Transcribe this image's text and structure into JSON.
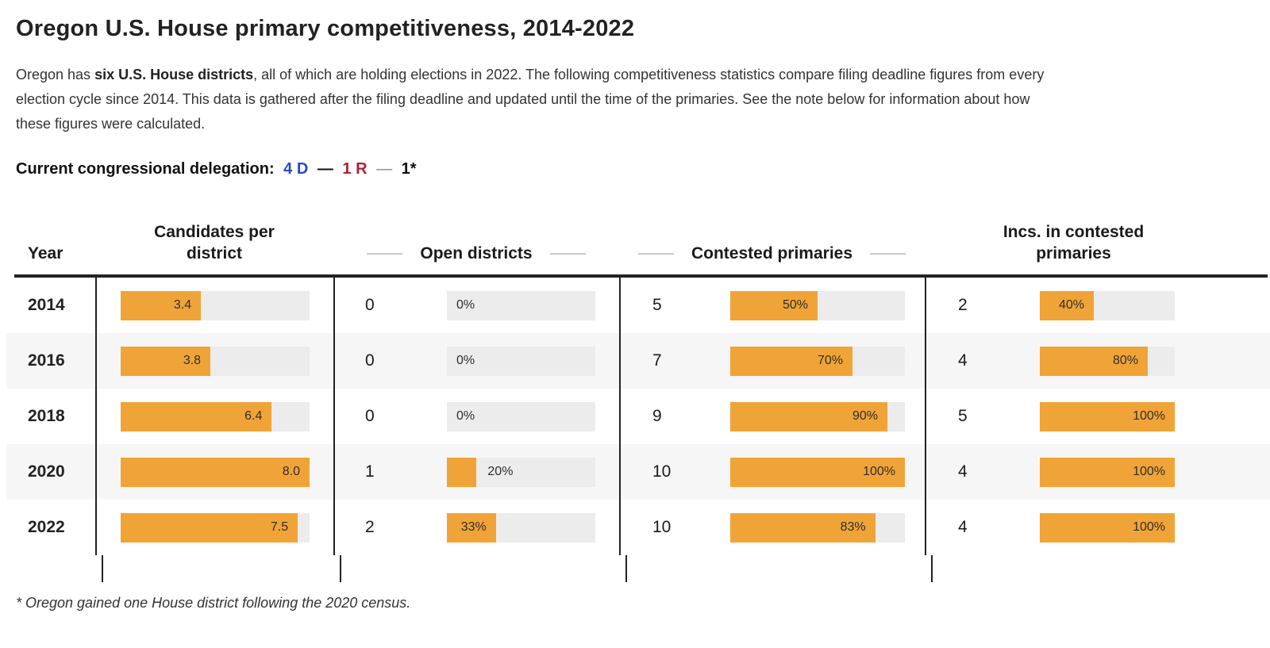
{
  "header": {
    "title": "Oregon U.S. House primary competitiveness, 2014-2022",
    "intro_pre": "Oregon has ",
    "intro_bold": "six U.S. House districts",
    "intro_post": ", all of which are holding elections in 2022. The following competitiveness statistics compare filing deadline figures from every election cycle since 2014. This data is gathered after the filing deadline and updated until the time of the primaries. See the note below for information about how these figures were calculated."
  },
  "delegation": {
    "label": "Current congressional delegation:",
    "democrats": "4 D",
    "separator1": "—",
    "republicans": "1 R",
    "separator2": "—",
    "other": "1*"
  },
  "table": {
    "columns": [
      "Year",
      "Candidates per district",
      "Open districts",
      "Contested primaries",
      "Incs. in contested primaries"
    ],
    "rows": [
      {
        "year": "2014",
        "candidates": {
          "label": "3.4",
          "pct": 42.5
        },
        "open": {
          "count": "0",
          "label": "0%",
          "pct": 0
        },
        "contested": {
          "count": "5",
          "label": "50%",
          "pct": 50
        },
        "incs": {
          "count": "2",
          "label": "40%",
          "pct": 40
        }
      },
      {
        "year": "2016",
        "candidates": {
          "label": "3.8",
          "pct": 47.5
        },
        "open": {
          "count": "0",
          "label": "0%",
          "pct": 0
        },
        "contested": {
          "count": "7",
          "label": "70%",
          "pct": 70
        },
        "incs": {
          "count": "4",
          "label": "80%",
          "pct": 80
        }
      },
      {
        "year": "2018",
        "candidates": {
          "label": "6.4",
          "pct": 80
        },
        "open": {
          "count": "0",
          "label": "0%",
          "pct": 0
        },
        "contested": {
          "count": "9",
          "label": "90%",
          "pct": 90
        },
        "incs": {
          "count": "5",
          "label": "100%",
          "pct": 100
        }
      },
      {
        "year": "2020",
        "candidates": {
          "label": "8.0",
          "pct": 100
        },
        "open": {
          "count": "1",
          "label": "20%",
          "pct": 20
        },
        "contested": {
          "count": "10",
          "label": "100%",
          "pct": 100
        },
        "incs": {
          "count": "4",
          "label": "100%",
          "pct": 100
        }
      },
      {
        "year": "2022",
        "candidates": {
          "label": "7.5",
          "pct": 93.75
        },
        "open": {
          "count": "2",
          "label": "33%",
          "pct": 33
        },
        "contested": {
          "count": "10",
          "label": "83%",
          "pct": 83
        },
        "incs": {
          "count": "4",
          "label": "100%",
          "pct": 100
        }
      }
    ]
  },
  "footnote": "* Oregon gained one House district following the 2020 census.",
  "colors": {
    "bar_orange": "#F0A437",
    "bar_track": "#ECECEC",
    "row_stripe": "#F6F6F6",
    "democrat_blue": "#2C49C4",
    "republican_red": "#AE2139",
    "separator_gray": "#8A8A8A"
  },
  "chart_data": {
    "type": "table",
    "title": "Oregon U.S. House primary competitiveness, 2014-2022",
    "categories": [
      "2014",
      "2016",
      "2018",
      "2020",
      "2022"
    ],
    "series": [
      {
        "name": "Candidates per district",
        "values": [
          3.4,
          3.8,
          6.4,
          8.0,
          7.5
        ],
        "bar_scale_max": 8.0
      },
      {
        "name": "Open districts (count)",
        "values": [
          0,
          0,
          0,
          1,
          2
        ]
      },
      {
        "name": "Open districts (%)",
        "values": [
          0,
          0,
          0,
          20,
          33
        ]
      },
      {
        "name": "Contested primaries (count)",
        "values": [
          5,
          7,
          9,
          10,
          10
        ]
      },
      {
        "name": "Contested primaries (%)",
        "values": [
          50,
          70,
          90,
          100,
          83
        ]
      },
      {
        "name": "Incs. in contested primaries (count)",
        "values": [
          2,
          4,
          5,
          4,
          4
        ]
      },
      {
        "name": "Incs. in contested primaries (%)",
        "values": [
          40,
          80,
          100,
          100,
          100
        ]
      }
    ],
    "legend_position": "none",
    "grid": false,
    "bar_color": "#F0A437"
  }
}
